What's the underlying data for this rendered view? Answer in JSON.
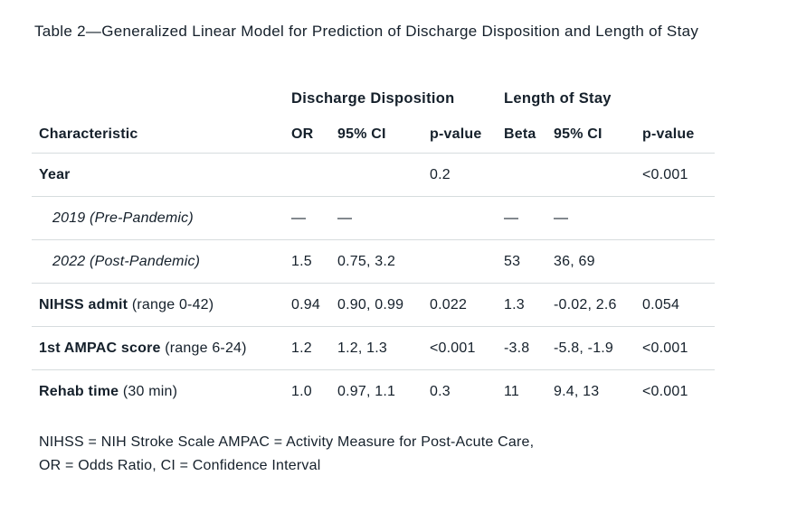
{
  "title": "Table 2—Generalized Linear Model for Prediction of Discharge Disposition and Length of Stay",
  "table": {
    "groups": {
      "discharge_disposition": "Discharge Disposition",
      "length_of_stay": "Length of Stay"
    },
    "columns": {
      "characteristic": "Characteristic",
      "or": "OR",
      "ci_dd": "95% CI",
      "p_dd": "p-value",
      "beta": "Beta",
      "ci_los": "95% CI",
      "p_los": "p-value"
    },
    "rows": [
      {
        "label": "Year",
        "suffix": "",
        "cells": [
          "",
          "",
          "0.2",
          "",
          "",
          "<0.001"
        ]
      },
      {
        "label": "2019 (Pre-Pandemic)",
        "suffix": "",
        "cells": [
          "—",
          "—",
          "",
          "—",
          "—",
          ""
        ]
      },
      {
        "label": "2022 (Post-Pandemic)",
        "suffix": "",
        "cells": [
          "1.5",
          "0.75, 3.2",
          "",
          "53",
          "36, 69",
          ""
        ]
      },
      {
        "label": "NIHSS admit",
        "suffix": " (range 0-42)",
        "cells": [
          "0.94",
          "0.90, 0.99",
          "0.022",
          "1.3",
          "-0.02, 2.6",
          "0.054"
        ]
      },
      {
        "label": "1st AMPAC score",
        "suffix": " (range 6-24)",
        "cells": [
          "1.2",
          "1.2, 1.3",
          "<0.001",
          "-3.8",
          "-5.8, -1.9",
          "<0.001"
        ]
      },
      {
        "label": "Rehab time",
        "suffix": " (30 min)",
        "cells": [
          "1.0",
          "0.97, 1.1",
          "0.3",
          "11",
          "9.4, 13",
          "<0.001"
        ]
      }
    ]
  },
  "footnote": {
    "line1": "NIHSS = NIH Stroke Scale AMPAC = Activity Measure for Post-Acute Care,",
    "line2": "OR = Odds Ratio, CI = Confidence Interval"
  },
  "colors": {
    "text": "#15202b",
    "divider": "#d6dcde",
    "background": "#ffffff"
  }
}
